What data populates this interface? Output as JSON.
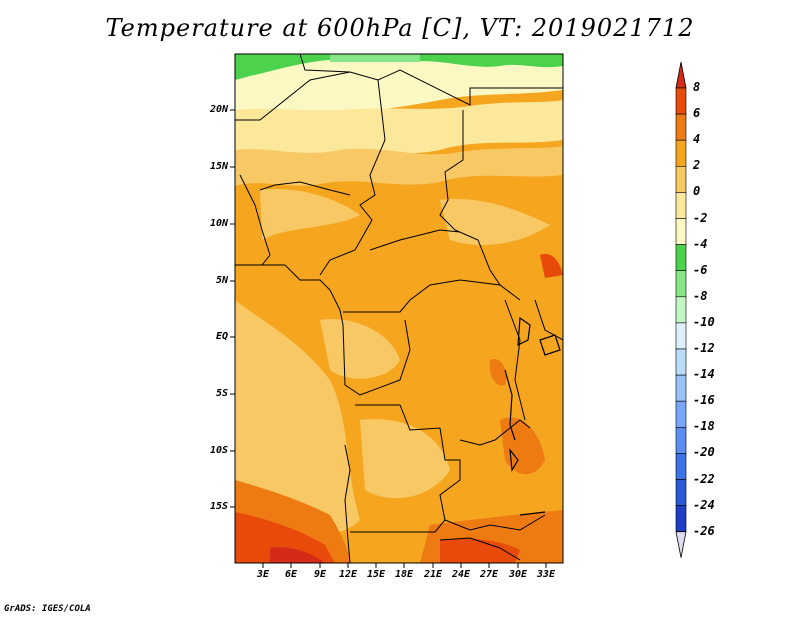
{
  "title": "Temperature at 600hPa [C], VT: 2019021712",
  "credit": "GrADS: IGES/COLA",
  "map": {
    "lat_labels": [
      "20N",
      "15N",
      "10N",
      "5N",
      "EQ",
      "5S",
      "10S",
      "15S"
    ],
    "lon_labels": [
      "3E",
      "6E",
      "9E",
      "12E",
      "15E",
      "18E",
      "21E",
      "24E",
      "27E",
      "30E",
      "33E"
    ]
  },
  "colorbar": {
    "labels": [
      "8",
      "6",
      "4",
      "2",
      "0",
      "-2",
      "-4",
      "-6",
      "-8",
      "-10",
      "-12",
      "-14",
      "-16",
      "-18",
      "-20",
      "-22",
      "-24",
      "-26"
    ],
    "colors": [
      "#e0dcf5",
      "#141a78",
      "#1e3ec8",
      "#2a58d8",
      "#3c72e8",
      "#5a8ef0",
      "#78a8f5",
      "#98c2f8",
      "#bcdcfb",
      "#ddf0fc",
      "#c4f5c4",
      "#86e686",
      "#4cd24c",
      "#fbf8c4",
      "#fbe89a",
      "#f7c864",
      "#f5a51e",
      "#ee7a12",
      "#e84a0a",
      "#d42a16"
    ]
  }
}
